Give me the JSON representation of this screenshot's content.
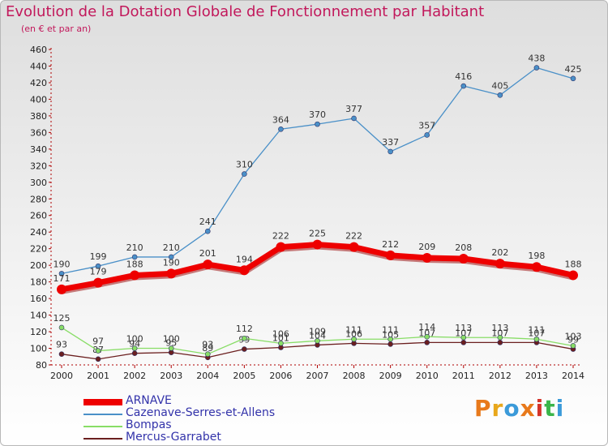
{
  "title": "Evolution de la Dotation Globale de Fonctionnement par Habitant",
  "subtitle": "(en € et par an)",
  "logo": "Proxiti",
  "chart_data": {
    "type": "line",
    "x": [
      "2000",
      "2001",
      "2002",
      "2003",
      "2004",
      "2005",
      "2006",
      "2007",
      "2008",
      "2009",
      "2010",
      "2011",
      "2012",
      "2013",
      "2014"
    ],
    "ylim": [
      80,
      460
    ],
    "ystep": 20,
    "grid": false,
    "legend_position": "bottom-left",
    "series": [
      {
        "name": "Cazenave-Serres-et-Allens",
        "color": "#4a90c8",
        "values": [
          190,
          199,
          210,
          210,
          241,
          310,
          364,
          370,
          377,
          337,
          357,
          416,
          405,
          438,
          425
        ]
      },
      {
        "name": "Bompas",
        "color": "#88dd66",
        "values": [
          125,
          97,
          100,
          100,
          93,
          112,
          106,
          109,
          111,
          111,
          114,
          113,
          113,
          111,
          103
        ]
      },
      {
        "name": "Mercus-Garrabet",
        "color": "#6b1f1f",
        "values": [
          93,
          87,
          94,
          95,
          89,
          99,
          101,
          104,
          106,
          105,
          107,
          107,
          107,
          107,
          99
        ]
      },
      {
        "name": "ARNAVE",
        "color": "#ee0000",
        "values": [
          171,
          179,
          188,
          190,
          201,
          194,
          222,
          225,
          222,
          212,
          209,
          208,
          202,
          198,
          188
        ]
      }
    ],
    "legend_order": [
      "ARNAVE",
      "Cazenave-Serres-et-Allens",
      "Bompas",
      "Mercus-Garrabet"
    ]
  }
}
